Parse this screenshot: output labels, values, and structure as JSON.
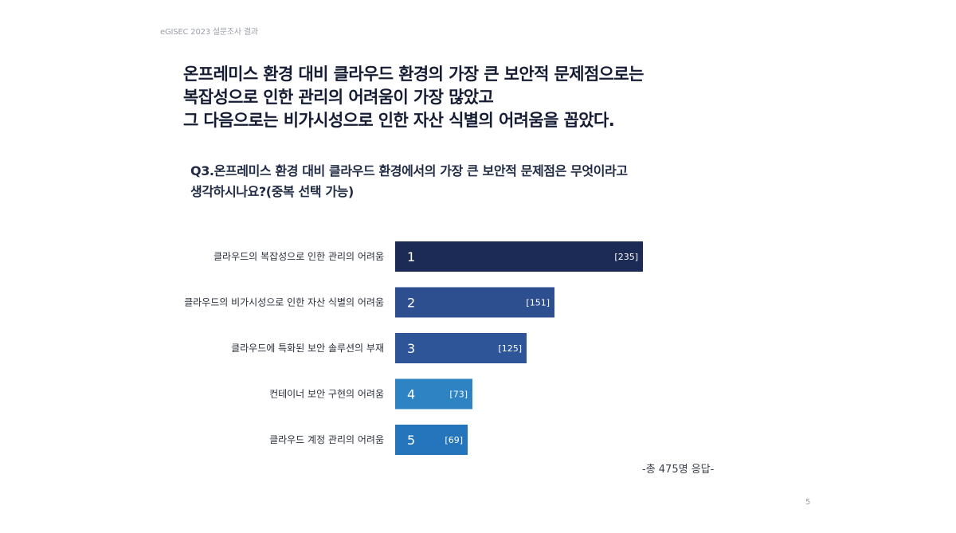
{
  "header": {
    "label": "eGISEC 2023 설문조사 결과"
  },
  "headline": {
    "lines": [
      "온프레미스 환경 대비 클라우드 환경의 가장 큰 보안적 문제점으로는",
      "복잡성으로 인한 관리의 어려움이 가장 많았고",
      "그 다음으로는 비가시성으로 인한 자산 식별의 어려움을 꼽았다."
    ]
  },
  "question": {
    "lines": [
      "Q3.온프레미스 환경 대비 클라우드 환경에서의 가장 큰 보안적 문제점은 무엇이라고",
      "생각하시나요?(중복 선택 가능)"
    ]
  },
  "chart_data": {
    "type": "bar",
    "orientation": "horizontal",
    "title": "",
    "xlabel": "",
    "ylabel": "",
    "categories": [
      "클라우드의 복잡성으로 인한 관리의 어려움",
      "클라우드의 비가시성으로 인한 자산 식별의 어려움",
      "클라우드에 특화된 보안 솔루션의 부재",
      "컨테이너 보안 구현의 어려움",
      "클라우드 계정 관리의 어려움"
    ],
    "ranks": [
      "1",
      "2",
      "3",
      "4",
      "5"
    ],
    "values": [
      235,
      151,
      125,
      73,
      69
    ],
    "value_labels": [
      "[235]",
      "[151]",
      "[125]",
      "[73]",
      "[69]"
    ],
    "colors": [
      "#1c2b55",
      "#2e4f8f",
      "#2d5597",
      "#2e83c3",
      "#2475bc"
    ],
    "xlim": [
      0,
      235
    ],
    "grid": false,
    "legend": "none"
  },
  "footnote": "-총 475명 응답-",
  "page_number": "5"
}
